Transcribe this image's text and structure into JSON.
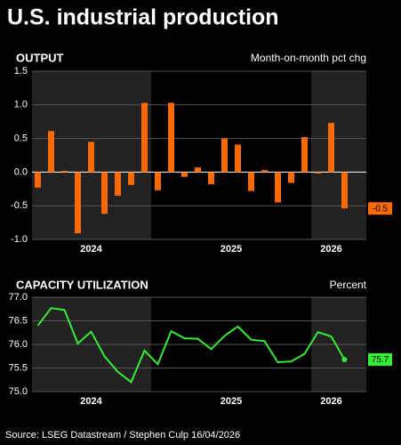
{
  "title": "U.S. industrial production",
  "source": "Source: LSEG Datastream / Stephen Culp 16/04/2026",
  "chart_data": [
    {
      "type": "bar",
      "title": "OUTPUT",
      "subtitle": "Month-on-month pct chg",
      "categories": [
        "2024",
        "2024",
        "2024",
        "2024",
        "2024",
        "2024",
        "2024",
        "2024",
        "2024",
        "2025",
        "2025",
        "2025",
        "2025",
        "2025",
        "2025",
        "2025",
        "2025",
        "2025",
        "2025",
        "2025",
        "2025",
        "2026",
        "2026",
        "2026"
      ],
      "values": [
        -0.23,
        0.61,
        0.02,
        -0.91,
        0.45,
        -0.62,
        -0.35,
        -0.19,
        1.03,
        -0.27,
        1.03,
        -0.07,
        0.07,
        -0.18,
        0.5,
        0.41,
        -0.28,
        0.03,
        -0.45,
        -0.16,
        0.52,
        -0.02,
        0.73,
        -0.54
      ],
      "value_labels": [
        null,
        null,
        null,
        null,
        null,
        null,
        null,
        null,
        null,
        null,
        null,
        null,
        null,
        null,
        null,
        null,
        null,
        null,
        null,
        null,
        null,
        null,
        null,
        "-0.5"
      ],
      "color": "#ff6a00",
      "ylim": [
        -1.0,
        1.5
      ],
      "yticks": [
        {
          "value": -1.0,
          "label": "-1.0"
        },
        -0.5,
        {
          "value": 0.0,
          "label": "0.0"
        },
        0.5,
        {
          "value": 1.0,
          "label": "1.0"
        },
        1.5
      ],
      "grid": true
    },
    {
      "type": "line",
      "title": "CAPACITY UTILIZATION",
      "subtitle": "Percent",
      "categories": [
        "2024",
        "2024",
        "2024",
        "2024",
        "2024",
        "2024",
        "2024",
        "2024",
        "2024",
        "2025",
        "2025",
        "2025",
        "2025",
        "2025",
        "2025",
        "2025",
        "2025",
        "2025",
        "2025",
        "2025",
        "2025",
        "2026",
        "2026",
        "2026"
      ],
      "values": [
        76.4,
        76.77,
        76.73,
        76.02,
        76.27,
        75.75,
        75.42,
        75.2,
        75.87,
        75.58,
        76.28,
        76.13,
        76.12,
        75.9,
        76.18,
        76.38,
        76.1,
        76.07,
        75.62,
        75.64,
        75.8,
        76.26,
        76.17,
        75.68
      ],
      "value_labels": [
        null,
        null,
        null,
        null,
        null,
        null,
        null,
        null,
        null,
        null,
        null,
        null,
        null,
        null,
        null,
        null,
        null,
        null,
        null,
        null,
        null,
        null,
        null,
        "75.7"
      ],
      "color": "#33ee33",
      "ylim": [
        75.0,
        77.0
      ],
      "yticks": [
        {
          "value": 75.0,
          "label": "75.0"
        },
        75.5,
        {
          "value": 76.0,
          "label": "76.0"
        },
        76.5,
        {
          "value": 77.0,
          "label": "77.0"
        }
      ],
      "grid": true
    }
  ]
}
